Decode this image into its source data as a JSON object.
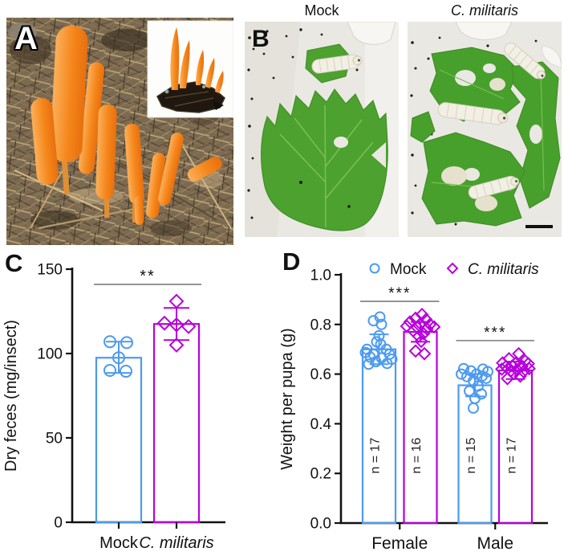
{
  "panels": {
    "a": {
      "label": "A"
    },
    "b": {
      "label": "B",
      "column_titles": [
        "Mock",
        "C. militaris"
      ]
    },
    "c": {
      "label": "C"
    },
    "d": {
      "label": "D"
    }
  },
  "colors": {
    "mock": "#4d9af0",
    "c_militaris": "#b800dc",
    "axis": "#111111",
    "sig_line": "#7c7c7c",
    "fungus_orange": "#f5881f",
    "leaf_green": "#4ca12f"
  },
  "chart_data": [
    {
      "panel": "C",
      "type": "bar",
      "title": "",
      "ylabel": "Dry feces (mg/insect)",
      "ylim": [
        0,
        150
      ],
      "ytick_values": [
        0,
        50,
        100,
        150
      ],
      "yticks": [
        "0",
        "50",
        "100",
        "150"
      ],
      "categories": [
        {
          "label": "Mock",
          "italic": false
        },
        {
          "label": "C. militaris",
          "italic": true
        }
      ],
      "bars": [
        {
          "category": "Mock",
          "series": "Mock",
          "marker": "circle",
          "color": "mock",
          "mean": 97.5,
          "err_hi": 107,
          "err_lo": 88.5,
          "points": [
            [
              -11,
              107
            ],
            [
              10,
              106.5
            ],
            [
              0,
              97.5
            ],
            [
              -11,
              90
            ],
            [
              9,
              89.5
            ]
          ]
        },
        {
          "category": "C. militaris",
          "series": "C. militaris",
          "marker": "diamond",
          "color": "c_militaris",
          "mean": 117.5,
          "err_hi": 127,
          "err_lo": 108,
          "points": [
            [
              0,
              131
            ],
            [
              -15,
              118
            ],
            [
              0,
              117
            ],
            [
              15,
              116
            ],
            [
              0,
              105
            ]
          ]
        }
      ],
      "significance": [
        {
          "bar_from": 0,
          "bar_to": 1,
          "label": "**",
          "y_value": 141
        }
      ]
    },
    {
      "panel": "D",
      "type": "bar",
      "title": "",
      "ylabel": "Weight per pupa (g)",
      "ylim": [
        0,
        1.0
      ],
      "ytick_values": [
        0,
        0.2,
        0.4,
        0.6,
        0.8,
        1.0
      ],
      "yticks": [
        "0.0",
        "0.2",
        "0.4",
        "0.6",
        "0.8",
        "1.0"
      ],
      "groups": [
        "Female",
        "Male"
      ],
      "legend": [
        {
          "label": "Mock",
          "marker": "circle",
          "color": "mock",
          "italic": false
        },
        {
          "label": "C. militaris",
          "marker": "diamond",
          "color": "c_militaris",
          "italic": true
        }
      ],
      "bars": [
        {
          "group": "Female",
          "series": "Mock",
          "marker": "circle",
          "color": "mock",
          "n_label": "n = 17",
          "mean": 0.7,
          "err_hi": 0.76,
          "err_lo": 0.64,
          "points": [
            [
              1,
              0.83
            ],
            [
              -7,
              0.815
            ],
            [
              3,
              0.8
            ],
            [
              0,
              0.755
            ],
            [
              -3,
              0.73
            ],
            [
              2,
              0.72
            ],
            [
              -15,
              0.7
            ],
            [
              9,
              0.7
            ],
            [
              -17,
              0.687
            ],
            [
              -7,
              0.68
            ],
            [
              13,
              0.68
            ],
            [
              -11,
              0.668
            ],
            [
              3,
              0.665
            ],
            [
              16,
              0.66
            ],
            [
              -4,
              0.65
            ],
            [
              10,
              0.643
            ],
            [
              -13,
              0.64
            ]
          ]
        },
        {
          "group": "Female",
          "series": "C. militaris",
          "marker": "diamond",
          "color": "c_militaris",
          "n_label": "n = 16",
          "mean": 0.77,
          "err_hi": 0.81,
          "err_lo": 0.73,
          "points": [
            [
              2,
              0.84
            ],
            [
              -6,
              0.825
            ],
            [
              7,
              0.82
            ],
            [
              -13,
              0.81
            ],
            [
              0,
              0.803
            ],
            [
              12,
              0.8
            ],
            [
              -17,
              0.793
            ],
            [
              17,
              0.79
            ],
            [
              -4,
              0.788
            ],
            [
              8,
              0.782
            ],
            [
              -9,
              0.775
            ],
            [
              4,
              0.763
            ],
            [
              -2,
              0.752
            ],
            [
              1,
              0.732
            ],
            [
              -6,
              0.693
            ],
            [
              5,
              0.682
            ]
          ]
        },
        {
          "group": "Male",
          "series": "Mock",
          "marker": "circle",
          "color": "mock",
          "n_label": "n = 15",
          "mean": 0.555,
          "err_hi": 0.6,
          "err_lo": 0.51,
          "points": [
            [
              -14,
              0.622
            ],
            [
              10,
              0.62
            ],
            [
              -5,
              0.613
            ],
            [
              16,
              0.61
            ],
            [
              -17,
              0.6
            ],
            [
              2,
              0.6
            ],
            [
              9,
              0.592
            ],
            [
              -10,
              0.59
            ],
            [
              14,
              0.583
            ],
            [
              -2,
              0.573
            ],
            [
              4,
              0.552
            ],
            [
              -7,
              0.532
            ],
            [
              8,
              0.52
            ],
            [
              0,
              0.502
            ],
            [
              -2,
              0.463
            ]
          ]
        },
        {
          "group": "Male",
          "series": "C. militaris",
          "marker": "diamond",
          "color": "c_militaris",
          "n_label": "n = 17",
          "mean": 0.615,
          "err_hi": 0.65,
          "err_lo": 0.58,
          "points": [
            [
              4,
              0.682
            ],
            [
              -8,
              0.662
            ],
            [
              12,
              0.653
            ],
            [
              -16,
              0.645
            ],
            [
              0,
              0.643
            ],
            [
              16,
              0.642
            ],
            [
              -4,
              0.633
            ],
            [
              8,
              0.632
            ],
            [
              -12,
              0.63
            ],
            [
              17,
              0.622
            ],
            [
              -17,
              0.62
            ],
            [
              2,
              0.618
            ],
            [
              -6,
              0.612
            ],
            [
              10,
              0.61
            ],
            [
              -2,
              0.602
            ],
            [
              6,
              0.592
            ],
            [
              -10,
              0.582
            ]
          ]
        }
      ],
      "significance": [
        {
          "bar_from": 0,
          "bar_to": 1,
          "label": "***",
          "y_value": 0.893
        },
        {
          "bar_from": 2,
          "bar_to": 3,
          "label": "***",
          "y_value": 0.735
        }
      ]
    }
  ]
}
